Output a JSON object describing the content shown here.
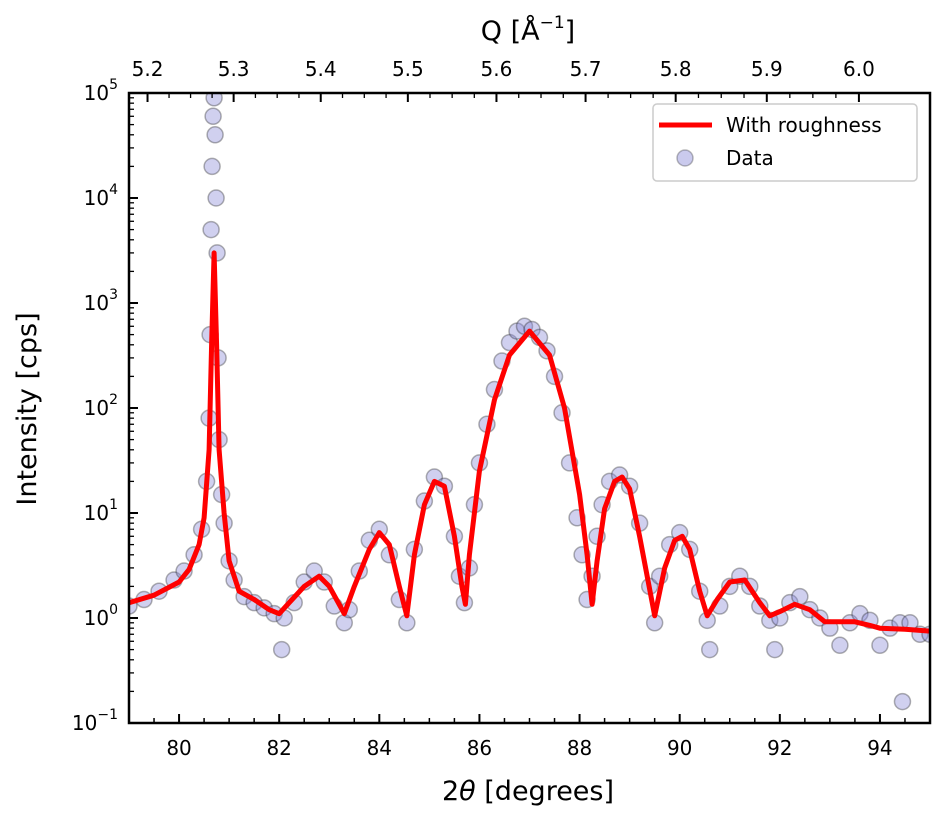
{
  "chart_data": {
    "type": "scatter",
    "title": "",
    "xlabel_prefix": "2",
    "xlabel_symbol": "θ",
    "xlabel_suffix": " [degrees]",
    "ylabel": "Intensity [cps]",
    "top_xlabel_prefix": "Q [Å",
    "top_xlabel_exp": "−1",
    "top_xlabel_suffix": "]",
    "xlim": [
      79,
      95
    ],
    "ylim": [
      0.1,
      100000
    ],
    "yscale": "log",
    "x_ticks": [
      80,
      82,
      84,
      86,
      88,
      90,
      92,
      94
    ],
    "x_tick_labels": [
      "80",
      "82",
      "84",
      "86",
      "88",
      "90",
      "92",
      "94"
    ],
    "y_ticks": [
      0.1,
      1,
      10,
      100,
      1000,
      10000,
      100000
    ],
    "y_tick_labels": [
      {
        "base": "10",
        "exp": "−1"
      },
      {
        "base": "10",
        "exp": "0"
      },
      {
        "base": "10",
        "exp": "1"
      },
      {
        "base": "10",
        "exp": "2"
      },
      {
        "base": "10",
        "exp": "3"
      },
      {
        "base": "10",
        "exp": "4"
      },
      {
        "base": "10",
        "exp": "5"
      }
    ],
    "top_axis_ticks": [
      {
        "label": "5.2",
        "two_theta": 79.37
      },
      {
        "label": "5.3",
        "two_theta": 81.09
      },
      {
        "label": "5.4",
        "two_theta": 82.83
      },
      {
        "label": "5.5",
        "two_theta": 84.57
      },
      {
        "label": "5.6",
        "two_theta": 86.34
      },
      {
        "label": "5.7",
        "two_theta": 88.12
      },
      {
        "label": "5.8",
        "two_theta": 89.92
      },
      {
        "label": "5.9",
        "two_theta": 91.74
      },
      {
        "label": "6.0",
        "two_theta": 93.58
      }
    ],
    "legend_position": "upper right",
    "series": [
      {
        "name": "With roughness",
        "kind": "line",
        "color": "#ff0000",
        "x": [
          79.0,
          79.5,
          80.0,
          80.2,
          80.4,
          80.5,
          80.6,
          80.65,
          80.7,
          80.75,
          80.8,
          80.9,
          81.0,
          81.2,
          81.5,
          81.8,
          82.0,
          82.2,
          82.5,
          82.8,
          83.0,
          83.3,
          83.5,
          83.8,
          84.0,
          84.2,
          84.4,
          84.55,
          84.7,
          84.9,
          85.1,
          85.3,
          85.5,
          85.65,
          85.72,
          85.8,
          86.0,
          86.3,
          86.6,
          87.0,
          87.4,
          87.7,
          88.0,
          88.15,
          88.25,
          88.35,
          88.5,
          88.7,
          88.85,
          89.0,
          89.2,
          89.5,
          89.7,
          89.9,
          90.05,
          90.2,
          90.4,
          90.55,
          90.75,
          91.0,
          91.3,
          91.6,
          91.8,
          92.0,
          92.3,
          92.6,
          92.9,
          93.2,
          93.5,
          93.8,
          94.0,
          94.5,
          95.0
        ],
        "y": [
          1.4,
          1.65,
          2.2,
          2.9,
          5.0,
          9.0,
          40.0,
          400.0,
          3000.0,
          400.0,
          40.0,
          10.0,
          3.5,
          1.8,
          1.5,
          1.2,
          1.1,
          1.4,
          2.0,
          2.5,
          2.0,
          1.1,
          2.0,
          4.5,
          6.5,
          5.0,
          2.0,
          1.05,
          4.0,
          12.0,
          20.0,
          18.0,
          6.0,
          2.0,
          1.35,
          4.0,
          25.0,
          120.0,
          320.0,
          540.0,
          320.0,
          100.0,
          15.0,
          4.0,
          1.35,
          3.5,
          11.0,
          20.0,
          22.0,
          17.0,
          6.0,
          1.05,
          3.0,
          5.5,
          6.0,
          4.5,
          1.8,
          1.05,
          1.5,
          2.2,
          2.3,
          1.4,
          1.05,
          1.15,
          1.35,
          1.2,
          0.92,
          0.92,
          0.92,
          0.85,
          0.8,
          0.78,
          0.75
        ]
      },
      {
        "name": "Data",
        "kind": "scatter",
        "color": "#8a8ad8",
        "edge_color": "#222222",
        "x": [
          79.0,
          79.3,
          79.6,
          79.9,
          80.1,
          80.3,
          80.45,
          80.55,
          80.6,
          80.62,
          80.64,
          80.66,
          80.68,
          80.7,
          80.72,
          80.74,
          80.76,
          80.78,
          80.8,
          80.85,
          80.9,
          81.0,
          81.1,
          81.3,
          81.5,
          81.7,
          81.9,
          82.05,
          82.1,
          82.3,
          82.5,
          82.7,
          82.9,
          83.1,
          83.3,
          83.4,
          83.6,
          83.8,
          84.0,
          84.2,
          84.4,
          84.55,
          84.7,
          84.9,
          85.1,
          85.3,
          85.5,
          85.6,
          85.7,
          85.8,
          85.9,
          86.0,
          86.15,
          86.3,
          86.45,
          86.6,
          86.75,
          86.9,
          87.05,
          87.2,
          87.35,
          87.5,
          87.65,
          87.8,
          87.95,
          88.05,
          88.15,
          88.25,
          88.35,
          88.45,
          88.6,
          88.8,
          89.0,
          89.2,
          89.4,
          89.5,
          89.6,
          89.8,
          90.0,
          90.2,
          90.4,
          90.55,
          90.6,
          90.8,
          91.0,
          91.2,
          91.4,
          91.6,
          91.8,
          91.9,
          92.0,
          92.2,
          92.4,
          92.6,
          92.8,
          93.0,
          93.2,
          93.4,
          93.6,
          93.8,
          94.0,
          94.2,
          94.4,
          94.45,
          94.6,
          94.8,
          95.0
        ],
        "y": [
          1.3,
          1.5,
          1.8,
          2.3,
          2.8,
          4.0,
          7.0,
          20.0,
          80.0,
          500.0,
          5000.0,
          20000.0,
          60000.0,
          90000.0,
          40000.0,
          10000.0,
          3000.0,
          300.0,
          50.0,
          15.0,
          8.0,
          3.5,
          2.3,
          1.6,
          1.4,
          1.25,
          1.1,
          0.5,
          1.0,
          1.4,
          2.2,
          2.8,
          2.2,
          1.3,
          0.9,
          1.2,
          2.8,
          5.5,
          7.0,
          4.0,
          1.5,
          0.9,
          4.5,
          13.0,
          22.0,
          18.0,
          6.0,
          2.5,
          1.4,
          3.0,
          12.0,
          30.0,
          70.0,
          150.0,
          280.0,
          420.0,
          540.0,
          600.0,
          560.0,
          470.0,
          350.0,
          200.0,
          90.0,
          30.0,
          9.0,
          4.0,
          1.5,
          2.5,
          6.0,
          12.0,
          20.0,
          23.0,
          18.0,
          8.0,
          2.0,
          0.9,
          2.5,
          5.0,
          6.5,
          4.5,
          1.8,
          0.95,
          0.5,
          1.3,
          2.0,
          2.5,
          2.0,
          1.3,
          0.95,
          0.5,
          1.0,
          1.4,
          1.6,
          1.2,
          1.0,
          0.8,
          0.55,
          0.9,
          1.1,
          0.95,
          0.55,
          0.8,
          0.9,
          0.16,
          0.9,
          0.7,
          0.7
        ]
      }
    ]
  }
}
